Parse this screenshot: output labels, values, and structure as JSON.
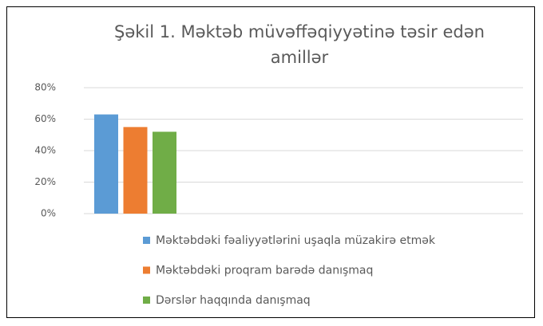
{
  "chart_data": {
    "type": "bar",
    "title": "Şəkil 1. Məktəb müvəffəqiyyətinə təsir edən amillər",
    "categories": [
      null
    ],
    "series": [
      {
        "name": "Məktəbdəki fəaliyyətlərini uşaqla müzakirə etmək",
        "color": "#5b9bd5",
        "values": [
          63
        ]
      },
      {
        "name": "Məktəbdəki proqram barədə danışmaq",
        "color": "#ed7d31",
        "values": [
          55
        ]
      },
      {
        "name": "Dərslər haqqında danışmaq",
        "color": "#70ad47",
        "values": [
          52
        ]
      }
    ],
    "ylim": [
      0,
      80
    ],
    "yticks": [
      {
        "value": 0,
        "label": "0%"
      },
      {
        "value": 20,
        "label": "20%"
      },
      {
        "value": 40,
        "label": "40%"
      },
      {
        "value": 60,
        "label": "60%"
      },
      {
        "value": 80,
        "label": "80%"
      }
    ],
    "grid": true,
    "legend": "bottom"
  }
}
